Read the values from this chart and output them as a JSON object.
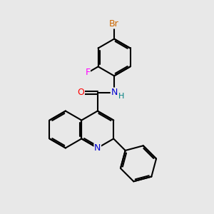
{
  "bg_color": "#e8e8e8",
  "bond_color": "#000000",
  "bond_width": 1.5,
  "atom_colors": {
    "N_amide": "#0000cd",
    "N_quinoline": "#0000cd",
    "O": "#ff0000",
    "F": "#ff00ff",
    "Br": "#cc6600",
    "H": "#008080",
    "C": "#000000"
  },
  "font_size": 9,
  "figsize": [
    3.0,
    3.0
  ],
  "dpi": 100
}
